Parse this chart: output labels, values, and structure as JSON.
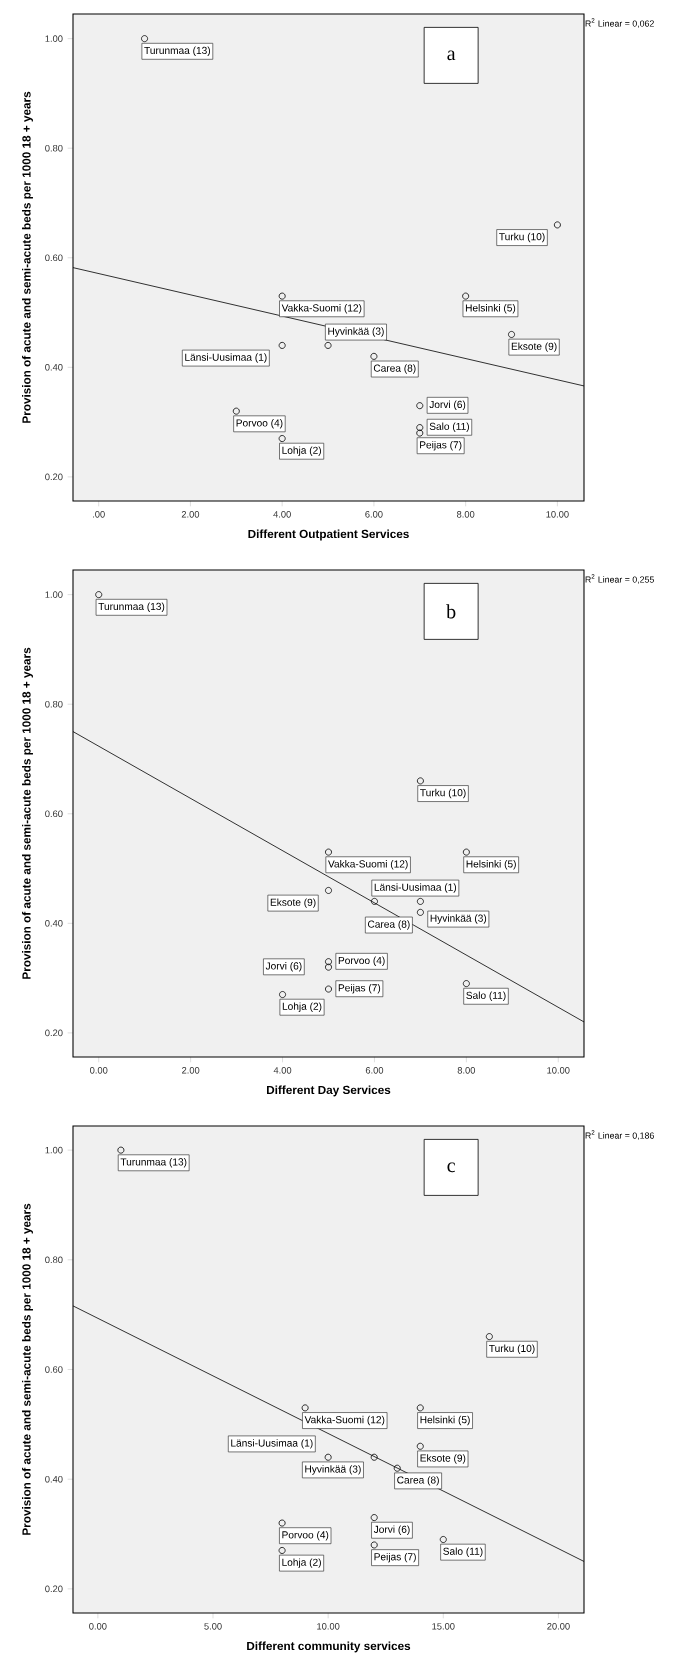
{
  "chart_data": [
    {
      "type": "scatter",
      "xlabel": "Different Outpatient Services",
      "ylabel": "Provision of acute and semi-acute beds per 1000 18 + years",
      "xlim": [
        -0.56,
        10.58
      ],
      "ylim": [
        0.156,
        1.045
      ],
      "xticks": [
        {
          "value": 0,
          "label": ".00"
        },
        {
          "value": 2,
          "label": "2.00"
        },
        {
          "value": 4,
          "label": "4.00"
        },
        {
          "value": 6,
          "label": "6.00"
        },
        {
          "value": 8,
          "label": "8.00"
        },
        {
          "value": 10,
          "label": "10.00"
        }
      ],
      "yticks": [
        {
          "value": 0.2,
          "label": "0.20"
        },
        {
          "value": 0.4,
          "label": "0.40"
        },
        {
          "value": 0.6,
          "label": "0.60"
        },
        {
          "value": 0.8,
          "label": "0.80"
        },
        {
          "value": 1.0,
          "label": "1.00"
        }
      ],
      "series": [
        {
          "marker": "circle",
          "color": "#000000",
          "x": [
            1,
            10,
            4,
            8,
            9,
            4,
            5,
            6,
            7,
            7,
            7,
            3,
            4
          ],
          "values": [
            1.0,
            0.66,
            0.53,
            0.53,
            0.46,
            0.44,
            0.44,
            0.42,
            0.33,
            0.29,
            0.28,
            0.32,
            0.27
          ]
        },
        {
          "type": "line",
          "color": "#000000",
          "x": [
            -0.56,
            10.58
          ],
          "values": [
            0.582,
            0.366
          ]
        }
      ],
      "annotations": [
        {
          "text": "Turunmaa (13)",
          "x": 1,
          "y": 1.0
        },
        {
          "text": "Turku (10)",
          "x": 10,
          "y": 0.66
        },
        {
          "text": "Vakka-Suomi (12)",
          "x": 4,
          "y": 0.53
        },
        {
          "text": "Helsinki (5)",
          "x": 8,
          "y": 0.53
        },
        {
          "text": "Eksote (9)",
          "x": 9,
          "y": 0.46
        },
        {
          "text": "Länsi-Uusimaa (1)",
          "x": 4,
          "y": 0.44
        },
        {
          "text": "Hyvinkää (3)",
          "x": 5,
          "y": 0.44
        },
        {
          "text": "Carea (8)",
          "x": 6,
          "y": 0.42
        },
        {
          "text": "Jorvi (6)",
          "x": 7,
          "y": 0.33
        },
        {
          "text": "Salo (11)",
          "x": 7,
          "y": 0.29
        },
        {
          "text": "Peijas (7)",
          "x": 7,
          "y": 0.28
        },
        {
          "text": "Porvoo (4)",
          "x": 3,
          "y": 0.32
        },
        {
          "text": "Lohja (2)",
          "x": 4,
          "y": 0.27
        },
        "R$^{2}$ Linear = 0,062",
        "a"
      ]
    },
    {
      "type": "scatter",
      "xlabel": "Different Day Services",
      "ylabel": "Provision of acute and semi-acute beds per 1000 18 + years",
      "xlim": [
        -0.56,
        10.56
      ],
      "ylim": [
        0.156,
        1.045
      ],
      "xticks": [
        {
          "value": 0,
          "label": "0.00"
        },
        {
          "value": 2,
          "label": "2.00"
        },
        {
          "value": 4,
          "label": "4.00"
        },
        {
          "value": 6,
          "label": "6.00"
        },
        {
          "value": 8,
          "label": "8.00"
        },
        {
          "value": 10,
          "label": "10.00"
        }
      ],
      "yticks": [
        {
          "value": 0.2,
          "label": "0.20"
        },
        {
          "value": 0.4,
          "label": "0.40"
        },
        {
          "value": 0.6,
          "label": "0.60"
        },
        {
          "value": 0.8,
          "label": "0.80"
        },
        {
          "value": 1.0,
          "label": "1.00"
        }
      ],
      "series": [
        {
          "marker": "circle",
          "color": "#000000",
          "x": [
            0,
            7,
            5,
            8,
            5,
            6,
            7,
            7,
            5,
            5,
            4,
            5,
            8
          ],
          "values": [
            1.0,
            0.66,
            0.53,
            0.53,
            0.46,
            0.44,
            0.44,
            0.42,
            0.33,
            0.32,
            0.27,
            0.28,
            0.29
          ]
        },
        {
          "type": "line",
          "color": "#000000",
          "x": [
            -0.56,
            10.56
          ],
          "values": [
            0.75,
            0.22
          ]
        }
      ],
      "annotations": [
        {
          "text": "Turunmaa (13)",
          "x": 0,
          "y": 1.0
        },
        {
          "text": "Turku (10)",
          "x": 7,
          "y": 0.66
        },
        {
          "text": "Vakka-Suomi (12)",
          "x": 5,
          "y": 0.53
        },
        {
          "text": "Helsinki (5)",
          "x": 8,
          "y": 0.53
        },
        {
          "text": "Eksote (9)",
          "x": 5,
          "y": 0.46
        },
        {
          "text": "Länsi-Uusimaa (1)",
          "x": 6,
          "y": 0.44
        },
        {
          "text": "Hyvinkää (3)",
          "x": 7,
          "y": 0.44
        },
        {
          "text": "Carea (8)",
          "x": 7,
          "y": 0.42
        },
        {
          "text": "Porvoo (4)",
          "x": 5,
          "y": 0.33
        },
        {
          "text": "Jorvi (6)",
          "x": 5,
          "y": 0.32
        },
        {
          "text": "Lohja (2)",
          "x": 4,
          "y": 0.27
        },
        {
          "text": "Peijas (7)",
          "x": 5,
          "y": 0.28
        },
        {
          "text": "Salo (11)",
          "x": 8,
          "y": 0.29
        },
        "R$^{2}$ Linear = 0,255",
        "b"
      ]
    },
    {
      "type": "scatter",
      "xlabel": "Different community services",
      "ylabel": "Provision of acute and semi-acute beds per 1000 18 + years",
      "xlim": [
        -1.08,
        21.11
      ],
      "ylim": [
        0.156,
        1.044
      ],
      "xticks": [
        {
          "value": 0,
          "label": "0.00"
        },
        {
          "value": 5,
          "label": "5.00"
        },
        {
          "value": 10,
          "label": "10.00"
        },
        {
          "value": 15,
          "label": "15.00"
        },
        {
          "value": 20,
          "label": "20.00"
        }
      ],
      "yticks": [
        {
          "value": 0.2,
          "label": "0.20"
        },
        {
          "value": 0.4,
          "label": "0.40"
        },
        {
          "value": 0.6,
          "label": "0.60"
        },
        {
          "value": 0.8,
          "label": "0.80"
        },
        {
          "value": 1.0,
          "label": "1.00"
        }
      ],
      "series": [
        {
          "marker": "circle",
          "color": "#000000",
          "x": [
            1,
            17,
            9,
            14,
            12,
            10,
            14,
            13,
            8,
            12,
            8,
            12,
            15
          ],
          "values": [
            1.0,
            0.66,
            0.53,
            0.53,
            0.44,
            0.44,
            0.46,
            0.42,
            0.32,
            0.33,
            0.27,
            0.28,
            0.29
          ]
        },
        {
          "type": "line",
          "color": "#000000",
          "x": [
            -1.08,
            21.11
          ],
          "values": [
            0.716,
            0.25
          ]
        }
      ],
      "annotations": [
        {
          "text": "Turunmaa (13)",
          "x": 1,
          "y": 1.0
        },
        {
          "text": "Turku (10)",
          "x": 17,
          "y": 0.66
        },
        {
          "text": "Vakka-Suomi (12)",
          "x": 9,
          "y": 0.53
        },
        {
          "text": "Helsinki (5)",
          "x": 14,
          "y": 0.53
        },
        {
          "text": "Hyvinkää (3)",
          "x": 12,
          "y": 0.44
        },
        {
          "text": "Länsi-Uusimaa (1)",
          "x": 10,
          "y": 0.44
        },
        {
          "text": "Eksote (9)",
          "x": 14,
          "y": 0.46
        },
        {
          "text": "Carea (8)",
          "x": 13,
          "y": 0.42
        },
        {
          "text": "Porvoo (4)",
          "x": 8,
          "y": 0.32
        },
        {
          "text": "Jorvi (6)",
          "x": 12,
          "y": 0.33
        },
        {
          "text": "Lohja (2)",
          "x": 8,
          "y": 0.27
        },
        {
          "text": "Peijas (7)",
          "x": 12,
          "y": 0.28
        },
        {
          "text": "Salo (11)",
          "x": 15,
          "y": 0.29
        },
        "R$^{2}$ Linear = 0,186",
        "c"
      ]
    }
  ]
}
